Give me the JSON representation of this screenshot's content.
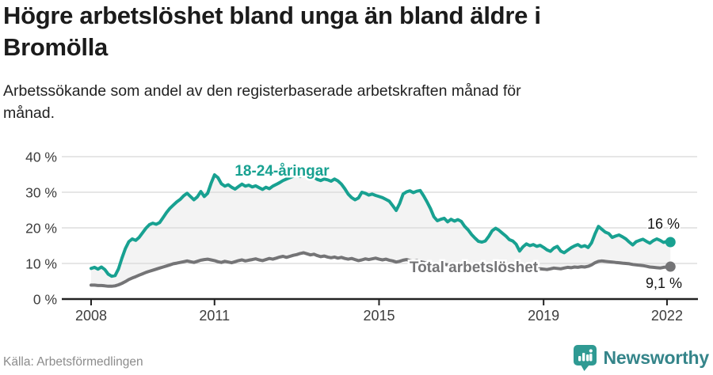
{
  "header": {
    "title_lines": [
      "Högre arbetslöshet bland unga än bland äldre i",
      "Bromölla"
    ],
    "subtitle": "Arbetssökande som andel av den registerbaserade arbetskraften månad för månad."
  },
  "footer": {
    "source": "Källa: Arbetsförmedlingen",
    "brand": "Newsworthy",
    "brand_icon": "bar-chart-speech-bubble"
  },
  "colors": {
    "young_line": "#18a191",
    "total_line": "#747476",
    "band_fill": "#f3f3f3",
    "gridline": "#d8d8d8",
    "axis": "#222222",
    "title_text": "#1b1b1b",
    "tick_text": "#3d3d3d",
    "source_text": "#8c8c8c",
    "brand_teal": "#35858a",
    "logo_teal": "#2f9a93"
  },
  "chart_data": {
    "type": "line",
    "title": "Högre arbetslöshet bland unga än bland äldre i Bromölla",
    "xlabel": "",
    "ylabel": "",
    "ylim": [
      0,
      40
    ],
    "grid": true,
    "legend": "inline-labels",
    "x_unit": "month",
    "x_range": "2008-01 to 2022-02",
    "y_ticks": [
      {
        "label": "0 %",
        "value": 0
      },
      {
        "label": "10 %",
        "value": 10
      },
      {
        "label": "20 %",
        "value": 20
      },
      {
        "label": "30 %",
        "value": 30
      },
      {
        "label": "40 %",
        "value": 40
      }
    ],
    "x_ticks": [
      {
        "label": "2008",
        "month_index": 0
      },
      {
        "label": "2011",
        "month_index": 36
      },
      {
        "label": "2015",
        "month_index": 84
      },
      {
        "label": "2019",
        "month_index": 132
      },
      {
        "label": "2022",
        "month_index": 168
      }
    ],
    "series": [
      {
        "name": "18-24-åringar",
        "color": "#18a191",
        "end_label": "16 %",
        "end_value": 16,
        "values": [
          8.6,
          8.9,
          8.4,
          9.0,
          8.3,
          7.0,
          6.4,
          6.6,
          8.5,
          11.5,
          14.2,
          16.1,
          16.9,
          16.5,
          17.3,
          18.6,
          19.9,
          20.9,
          21.3,
          21.0,
          21.5,
          22.9,
          24.3,
          25.5,
          26.4,
          27.3,
          28.0,
          29.0,
          29.7,
          28.8,
          27.9,
          28.7,
          30.2,
          28.8,
          29.7,
          32.5,
          34.9,
          34.1,
          32.4,
          31.7,
          32.1,
          31.4,
          30.9,
          31.6,
          32.3,
          31.7,
          32.0,
          31.5,
          31.8,
          31.3,
          30.8,
          31.4,
          31.0,
          31.7,
          32.2,
          32.7,
          33.3,
          33.7,
          34.1,
          34.5,
          34.8,
          34.4,
          34.9,
          34.3,
          33.9,
          34.2,
          33.6,
          33.3,
          33.7,
          33.5,
          33.1,
          33.7,
          33.2,
          32.3,
          31.0,
          29.5,
          28.5,
          27.9,
          28.4,
          30.0,
          29.7,
          29.2,
          29.5,
          29.1,
          28.8,
          28.5,
          28.0,
          27.5,
          26.2,
          24.9,
          26.8,
          29.5,
          30.1,
          30.4,
          29.9,
          30.3,
          30.5,
          29.0,
          27.3,
          25.4,
          23.1,
          22.0,
          22.4,
          22.7,
          21.7,
          22.4,
          21.9,
          22.3,
          21.8,
          20.4,
          19.4,
          18.1,
          17.1,
          16.2,
          16.0,
          16.3,
          17.6,
          19.2,
          19.9,
          19.3,
          18.5,
          17.7,
          16.7,
          16.3,
          15.4,
          13.5,
          14.7,
          15.5,
          15.0,
          15.3,
          14.8,
          15.1,
          14.5,
          13.8,
          13.4,
          14.3,
          14.8,
          13.5,
          13.0,
          13.7,
          14.4,
          14.9,
          15.3,
          14.7,
          15.0,
          14.5,
          15.8,
          18.3,
          20.4,
          19.6,
          18.8,
          18.4,
          17.3,
          17.7,
          18.0,
          17.5,
          16.9,
          16.0,
          15.2,
          16.1,
          16.5,
          16.8,
          16.2,
          15.7,
          16.4,
          16.9,
          16.5,
          15.9,
          16.2,
          16.0
        ]
      },
      {
        "name": "Total arbetslöshet",
        "color": "#747476",
        "end_label": "9,1 %",
        "end_value": 9.1,
        "values": [
          3.9,
          3.9,
          3.8,
          3.8,
          3.7,
          3.6,
          3.6,
          3.7,
          4.0,
          4.4,
          4.9,
          5.5,
          5.9,
          6.3,
          6.7,
          7.1,
          7.5,
          7.8,
          8.1,
          8.4,
          8.7,
          9.0,
          9.3,
          9.6,
          9.9,
          10.1,
          10.3,
          10.5,
          10.7,
          10.5,
          10.3,
          10.6,
          10.9,
          11.1,
          11.2,
          11.0,
          10.8,
          10.5,
          10.3,
          10.6,
          10.4,
          10.2,
          10.5,
          10.8,
          11.0,
          10.7,
          10.9,
          11.1,
          11.3,
          11.0,
          10.8,
          11.1,
          11.4,
          11.2,
          11.5,
          11.8,
          12.0,
          11.7,
          12.0,
          12.3,
          12.5,
          12.8,
          13.0,
          12.7,
          12.4,
          12.6,
          12.2,
          11.9,
          12.1,
          11.8,
          11.6,
          11.8,
          11.5,
          11.7,
          11.4,
          11.2,
          11.4,
          11.1,
          10.8,
          11.0,
          11.3,
          11.1,
          11.3,
          11.5,
          11.2,
          11.0,
          11.2,
          10.9,
          10.7,
          10.4,
          10.6,
          10.9,
          11.1,
          10.8,
          10.6,
          10.8,
          10.5,
          10.3,
          10.0,
          9.8,
          9.6,
          9.4,
          9.6,
          9.8,
          9.6,
          9.4,
          9.2,
          9.4,
          9.2,
          9.0,
          8.8,
          8.6,
          8.5,
          8.4,
          8.6,
          8.8,
          9.0,
          9.2,
          9.0,
          8.8,
          8.6,
          8.5,
          8.3,
          8.2,
          8.0,
          7.9,
          8.1,
          8.3,
          8.2,
          8.4,
          8.3,
          8.5,
          8.4,
          8.3,
          8.5,
          8.7,
          8.6,
          8.5,
          8.7,
          8.9,
          8.8,
          9.0,
          8.9,
          9.1,
          9.0,
          9.2,
          9.6,
          10.2,
          10.6,
          10.7,
          10.6,
          10.5,
          10.4,
          10.3,
          10.2,
          10.1,
          10.0,
          9.9,
          9.7,
          9.6,
          9.5,
          9.4,
          9.2,
          9.0,
          8.9,
          8.8,
          8.7,
          8.9,
          9.0,
          9.1
        ]
      }
    ]
  }
}
